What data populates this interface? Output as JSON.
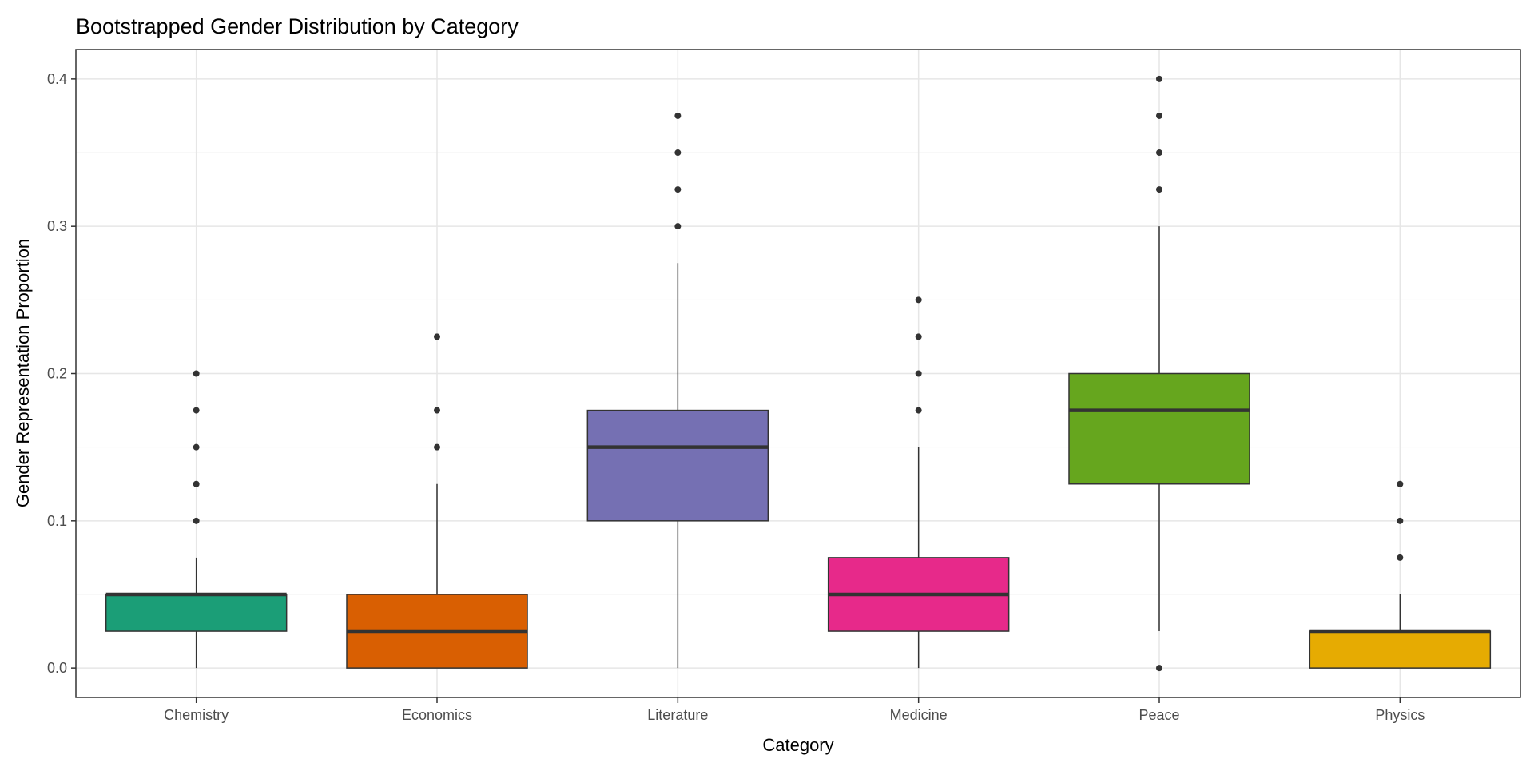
{
  "chart_data": {
    "type": "boxplot",
    "title": "Bootstrapped Gender Distribution by Category",
    "xlabel": "Category",
    "ylabel": "Gender Representation Proportion",
    "ylim": [
      -0.02,
      0.42
    ],
    "yticks": [
      0.0,
      0.1,
      0.2,
      0.3,
      0.4
    ],
    "ytick_labels": [
      "0.0",
      "0.1",
      "0.2",
      "0.3",
      "0.4"
    ],
    "grid": true,
    "legend": "none",
    "categories": [
      "Chemistry",
      "Economics",
      "Literature",
      "Medicine",
      "Peace",
      "Physics"
    ],
    "boxes": [
      {
        "category": "Chemistry",
        "color": "#1B9E77",
        "whisker_low": 0.0,
        "q1": 0.025,
        "median": 0.05,
        "q3": 0.05,
        "whisker_high": 0.075,
        "outliers": [
          0.1,
          0.125,
          0.15,
          0.175,
          0.2
        ]
      },
      {
        "category": "Economics",
        "color": "#D95F02",
        "whisker_low": 0.0,
        "q1": 0.0,
        "median": 0.025,
        "q3": 0.05,
        "whisker_high": 0.125,
        "outliers": [
          0.15,
          0.175,
          0.225
        ]
      },
      {
        "category": "Literature",
        "color": "#7570B3",
        "whisker_low": 0.0,
        "q1": 0.1,
        "median": 0.15,
        "q3": 0.175,
        "whisker_high": 0.275,
        "outliers": [
          0.3,
          0.325,
          0.35,
          0.375
        ]
      },
      {
        "category": "Medicine",
        "color": "#E7298A",
        "whisker_low": 0.0,
        "q1": 0.025,
        "median": 0.05,
        "q3": 0.075,
        "whisker_high": 0.15,
        "outliers": [
          0.175,
          0.2,
          0.225,
          0.25
        ]
      },
      {
        "category": "Peace",
        "color": "#66A61E",
        "whisker_low": 0.025,
        "q1": 0.125,
        "median": 0.175,
        "q3": 0.2,
        "whisker_high": 0.3,
        "outliers": [
          0.0,
          0.325,
          0.35,
          0.375,
          0.4
        ]
      },
      {
        "category": "Physics",
        "color": "#E6AB02",
        "whisker_low": 0.0,
        "q1": 0.0,
        "median": 0.025,
        "q3": 0.025,
        "whisker_high": 0.05,
        "outliers": [
          0.075,
          0.1,
          0.125
        ]
      }
    ]
  }
}
